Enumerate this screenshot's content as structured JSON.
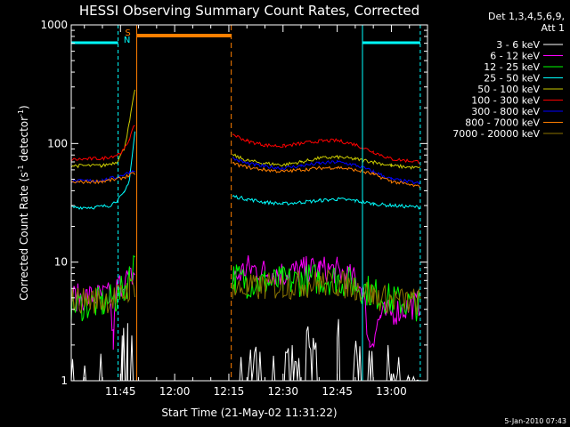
{
  "chart_data": {
    "type": "line",
    "title": "HESSI Observing Summary Count Rates, Corrected",
    "xlabel": "Start Time (21-May-02 11:31:22)",
    "ylabel_main": "Corrected Count Rate (s",
    "ylabel_exp1": "-1",
    "ylabel_mid": " detector",
    "ylabel_exp2": "-1",
    "ylabel_end": ")",
    "y_scale": "log",
    "ylim": [
      1,
      1000
    ],
    "xlim": [
      "11:31:22",
      "13:10:00"
    ],
    "y_ticks": [
      "1",
      "10",
      "100",
      "1000"
    ],
    "x_ticks": [
      "11:45",
      "12:00",
      "12:15",
      "12:30",
      "12:45",
      "13:00"
    ],
    "legend_header": [
      "Det 1,3,4,5,6,9,",
      "Att 1"
    ],
    "legend_placement": "right",
    "timestamp": "5-Jan-2010 07:43",
    "flag_labels": {
      "N": "N",
      "S": "S"
    },
    "gap": [
      "11:49:40",
      "12:15:40"
    ],
    "flags": {
      "N": [
        [
          "11:31:22",
          "11:44:20"
        ],
        [
          "12:52:00",
          "13:08:00"
        ]
      ],
      "S": [
        [
          "11:49:30",
          "12:15:40"
        ]
      ]
    },
    "series": [
      {
        "name": "3 - 6 keV",
        "color": "#ffffff",
        "points": [
          [
            "11:31:22",
            1
          ],
          [
            "11:44:00",
            1
          ],
          [
            "11:45:30",
            1.5
          ],
          [
            "11:47:00",
            1.8
          ],
          [
            "11:48:30",
            2.5
          ],
          [
            "11:49:00",
            3
          ],
          [
            "12:18:00",
            1.2
          ],
          [
            "12:30:00",
            1.1
          ],
          [
            "12:38:00",
            1.8
          ],
          [
            "12:45:00",
            2
          ],
          [
            "12:52:00",
            1.3
          ],
          [
            "13:08:00",
            1
          ]
        ]
      },
      {
        "name": "6 - 12 keV",
        "color": "#ff00ff",
        "points": [
          [
            "11:31:22",
            5
          ],
          [
            "11:42:00",
            5.2
          ],
          [
            "11:43:00",
            2.2
          ],
          [
            "11:44:00",
            6
          ],
          [
            "11:46:00",
            7
          ],
          [
            "11:47:30",
            7.3
          ],
          [
            "11:49:00",
            8
          ],
          [
            "12:16:00",
            7
          ],
          [
            "12:20:00",
            9
          ],
          [
            "12:25:00",
            8.3
          ],
          [
            "12:30:00",
            8
          ],
          [
            "12:35:00",
            8.5
          ],
          [
            "12:40:00",
            8.7
          ],
          [
            "12:45:00",
            8.5
          ],
          [
            "12:50:00",
            7
          ],
          [
            "12:52:00",
            6
          ],
          [
            "12:54:00",
            2
          ],
          [
            "12:57:00",
            3.5
          ],
          [
            "13:08:00",
            4.5
          ]
        ]
      },
      {
        "name": "12 - 25 keV",
        "color": "#00ff00",
        "points": [
          [
            "11:31:22",
            4.3
          ],
          [
            "11:40:00",
            4.5
          ],
          [
            "11:44:00",
            5
          ],
          [
            "11:46:00",
            6
          ],
          [
            "11:47:30",
            7.5
          ],
          [
            "11:49:00",
            11.5
          ],
          [
            "12:16:00",
            7.5
          ],
          [
            "12:20:00",
            6.8
          ],
          [
            "12:25:00",
            6.7
          ],
          [
            "12:30:00",
            6.8
          ],
          [
            "12:35:00",
            7
          ],
          [
            "12:40:00",
            7.3
          ],
          [
            "12:45:00",
            7.2
          ],
          [
            "12:50:00",
            6.5
          ],
          [
            "12:55:00",
            5.5
          ],
          [
            "13:00:00",
            4.8
          ],
          [
            "13:08:00",
            4.3
          ]
        ]
      },
      {
        "name": "25 - 50 keV",
        "color": "#00ffff",
        "points": [
          [
            "11:31:22",
            29
          ],
          [
            "11:38:00",
            29
          ],
          [
            "11:42:00",
            30
          ],
          [
            "11:44:00",
            33
          ],
          [
            "11:46:00",
            38
          ],
          [
            "11:47:30",
            50
          ],
          [
            "11:49:00",
            125
          ],
          [
            "12:16:00",
            36
          ],
          [
            "12:20:00",
            34
          ],
          [
            "12:25:00",
            32
          ],
          [
            "12:30:00",
            31
          ],
          [
            "12:35:00",
            32
          ],
          [
            "12:40:00",
            33
          ],
          [
            "12:45:00",
            34
          ],
          [
            "12:50:00",
            33
          ],
          [
            "12:55:00",
            31
          ],
          [
            "13:00:00",
            30
          ],
          [
            "13:08:00",
            29
          ]
        ]
      },
      {
        "name": "50 - 100 keV",
        "color": "#cccc00",
        "points": [
          [
            "11:31:22",
            65
          ],
          [
            "11:40:00",
            65
          ],
          [
            "11:44:00",
            70
          ],
          [
            "11:46:00",
            90
          ],
          [
            "11:47:30",
            150
          ],
          [
            "11:49:00",
            290
          ],
          [
            "12:16:00",
            80
          ],
          [
            "12:20:00",
            72
          ],
          [
            "12:25:00",
            68
          ],
          [
            "12:30:00",
            66
          ],
          [
            "12:35:00",
            70
          ],
          [
            "12:40:00",
            75
          ],
          [
            "12:45:00",
            77
          ],
          [
            "12:50:00",
            74
          ],
          [
            "12:55:00",
            70
          ],
          [
            "13:00:00",
            65
          ],
          [
            "13:08:00",
            62
          ]
        ]
      },
      {
        "name": "100 - 300 keV",
        "color": "#ff0000",
        "points": [
          [
            "11:31:22",
            73
          ],
          [
            "11:40:00",
            75
          ],
          [
            "11:44:00",
            80
          ],
          [
            "11:46:00",
            88
          ],
          [
            "11:47:30",
            110
          ],
          [
            "11:49:00",
            145
          ],
          [
            "12:16:00",
            120
          ],
          [
            "12:20:00",
            105
          ],
          [
            "12:25:00",
            97
          ],
          [
            "12:30:00",
            95
          ],
          [
            "12:35:00",
            100
          ],
          [
            "12:40:00",
            105
          ],
          [
            "12:45:00",
            106
          ],
          [
            "12:50:00",
            98
          ],
          [
            "12:55:00",
            85
          ],
          [
            "13:00:00",
            74
          ],
          [
            "13:08:00",
            70
          ]
        ]
      },
      {
        "name": "300 - 800 keV",
        "color": "#0000ff",
        "points": [
          [
            "11:31:22",
            48
          ],
          [
            "11:40:00",
            49
          ],
          [
            "11:44:00",
            52
          ],
          [
            "11:46:00",
            55
          ],
          [
            "11:47:30",
            57
          ],
          [
            "11:49:00",
            60
          ],
          [
            "12:16:00",
            75
          ],
          [
            "12:20:00",
            68
          ],
          [
            "12:25:00",
            64
          ],
          [
            "12:30:00",
            62
          ],
          [
            "12:35:00",
            65
          ],
          [
            "12:40:00",
            68
          ],
          [
            "12:45:00",
            70
          ],
          [
            "12:50:00",
            66
          ],
          [
            "12:55:00",
            58
          ],
          [
            "13:00:00",
            50
          ],
          [
            "13:08:00",
            46
          ]
        ]
      },
      {
        "name": "800 - 7000 keV",
        "color": "#ff7f00",
        "points": [
          [
            "11:31:22",
            47
          ],
          [
            "11:40:00",
            48
          ],
          [
            "11:44:00",
            50
          ],
          [
            "11:46:00",
            52
          ],
          [
            "11:47:30",
            54
          ],
          [
            "11:49:00",
            56
          ],
          [
            "12:16:00",
            68
          ],
          [
            "12:20:00",
            63
          ],
          [
            "12:25:00",
            60
          ],
          [
            "12:30:00",
            58
          ],
          [
            "12:35:00",
            60
          ],
          [
            "12:40:00",
            62
          ],
          [
            "12:45:00",
            63
          ],
          [
            "12:50:00",
            60
          ],
          [
            "12:55:00",
            55
          ],
          [
            "13:00:00",
            48
          ],
          [
            "13:08:00",
            43
          ]
        ]
      },
      {
        "name": "7000 - 20000 keV",
        "color": "#8b7500",
        "points": [
          [
            "11:31:22",
            4.8
          ],
          [
            "11:40:00",
            4.8
          ],
          [
            "11:44:00",
            5
          ],
          [
            "11:46:00",
            5.5
          ],
          [
            "11:47:30",
            6
          ],
          [
            "11:49:00",
            6.5
          ],
          [
            "12:16:00",
            5.8
          ],
          [
            "12:20:00",
            6
          ],
          [
            "12:25:00",
            6.2
          ],
          [
            "12:30:00",
            6.3
          ],
          [
            "12:35:00",
            6.5
          ],
          [
            "12:40:00",
            6.6
          ],
          [
            "12:45:00",
            6.6
          ],
          [
            "12:50:00",
            6.2
          ],
          [
            "12:55:00",
            5.2
          ],
          [
            "13:00:00",
            4.8
          ],
          [
            "13:08:00",
            4.6
          ]
        ]
      }
    ]
  }
}
